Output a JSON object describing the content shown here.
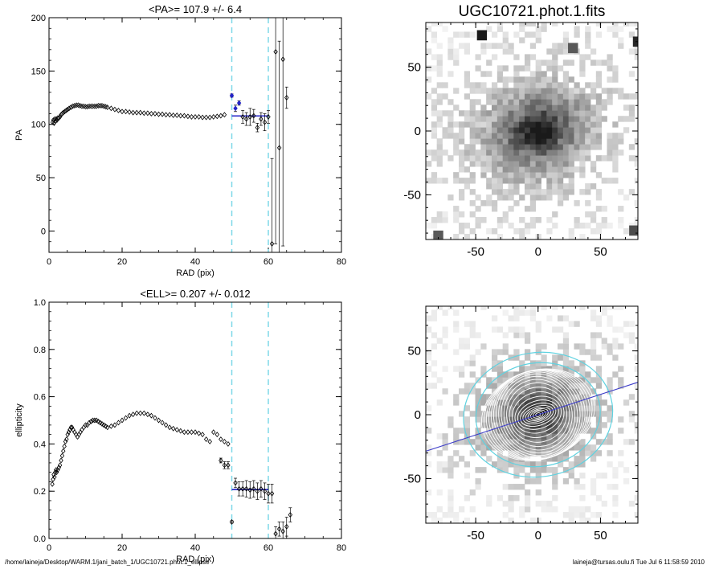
{
  "colors": {
    "axis": "#000000",
    "cyan_marker": "#7fd8e8",
    "mean_line": "#2323c8",
    "cyan_ellipse": "#5fd2e0",
    "pa_axis_line": "#3c3cc8"
  },
  "chart_data": [
    {
      "type": "scatter",
      "title": "<PA>= 107.9 +/-   6.4",
      "xlabel": "RAD (pix)",
      "ylabel": "PA",
      "xlim": [
        0,
        80
      ],
      "ylim": [
        -20,
        200
      ],
      "xticks": [
        "0",
        "20",
        "40",
        "60",
        "80"
      ],
      "yticks": [
        "0",
        "50",
        "100",
        "150",
        "200"
      ],
      "vlines": [
        50,
        60
      ],
      "mean_value": 107.9,
      "mean_range": [
        50,
        60
      ],
      "series": [
        {
          "x": [
            1.0,
            1.2,
            1.4,
            1.6,
            1.8,
            2.0,
            2.2,
            2.4,
            2.7,
            3.0,
            3.3,
            3.6,
            3.9,
            4.3,
            4.7,
            5.1,
            5.5,
            6.0,
            6.5,
            7.0,
            7.5,
            8.0,
            8.5,
            9.0,
            9.5,
            10.0,
            10.5,
            11.0,
            11.5,
            12.0,
            12.5,
            13.0,
            13.5,
            14.0,
            14.5,
            15.0,
            15.5,
            16.0,
            17.0,
            18.0,
            19.0,
            20.0,
            21.0,
            22.0,
            23.0,
            24.0,
            25.0,
            26.0,
            27.0,
            28.0,
            29.0,
            30.0,
            31.0,
            32.0,
            33.0,
            34.0,
            35.0,
            36.0,
            37.0,
            38.0,
            39.0,
            40.0,
            41.0,
            42.0,
            43.0,
            44.0,
            45.0,
            46.0,
            47.0,
            48.0
          ],
          "y": [
            102,
            104,
            101,
            105,
            103,
            105,
            104,
            106,
            106,
            107,
            109,
            110,
            111,
            112,
            113,
            114,
            115,
            116,
            117,
            117.5,
            118,
            118,
            117.5,
            117,
            117,
            116.5,
            116.5,
            117,
            117,
            117,
            117,
            117,
            117.5,
            117.5,
            117.5,
            117,
            116.5,
            116,
            115,
            114,
            113,
            112,
            112,
            111.5,
            111,
            111,
            111,
            110.5,
            110.5,
            110,
            110,
            109.5,
            109.5,
            109,
            109,
            108.5,
            108.5,
            108,
            108,
            107.5,
            107,
            107,
            107,
            106.5,
            106.5,
            106.5,
            107,
            107.5,
            108,
            109
          ]
        },
        {
          "color": "blue",
          "x": [
            50,
            51,
            52
          ],
          "y": [
            127,
            115,
            120
          ],
          "err": [
            1.5,
            3,
            2
          ]
        },
        {
          "x": [
            53,
            54,
            55,
            56,
            57,
            58,
            59,
            60,
            61,
            62,
            63,
            64,
            65
          ],
          "y": [
            107,
            105,
            107,
            108,
            97,
            105,
            102,
            107,
            -12,
            168,
            78,
            161,
            125
          ],
          "err": [
            6,
            6,
            8,
            6,
            4,
            6,
            8,
            6,
            80,
            180,
            100,
            175,
            10
          ]
        }
      ]
    },
    {
      "type": "scatter",
      "title": "<ELL>= 0.207 +/-  0.012",
      "xlabel": "RAD (pix)",
      "ylabel": "ellipticity",
      "xlim": [
        0,
        80
      ],
      "ylim": [
        0,
        1
      ],
      "xticks": [
        "0",
        "20",
        "40",
        "60",
        "80"
      ],
      "yticks": [
        "0.0",
        "0.2",
        "0.4",
        "0.6",
        "0.8",
        "1.0"
      ],
      "vlines": [
        50,
        60
      ],
      "mean_value": 0.207,
      "mean_range": [
        50,
        60
      ],
      "series": [
        {
          "x": [
            0.9,
            1.1,
            1.3,
            1.5,
            1.7,
            1.9,
            2.1,
            2.4,
            2.7,
            3.0,
            3.3,
            3.6,
            3.9,
            4.2,
            4.5,
            4.8,
            5.1,
            5.4,
            5.7,
            6.0,
            6.3,
            6.6,
            7.0,
            7.4,
            7.8,
            8.2,
            8.6,
            9.0,
            9.5,
            10.0,
            10.5,
            11.0,
            11.5,
            12.0,
            12.5,
            13.0,
            13.5,
            14.0,
            14.5,
            15.0,
            15.5,
            16.0,
            17.0,
            18.0,
            19.0,
            20.0,
            21.0,
            22.0,
            23.0,
            24.0,
            25.0,
            26.0,
            27.0,
            28.0,
            29.0,
            30.0,
            31.0,
            32.0,
            33.0,
            34.0,
            35.0,
            36.0,
            37.0,
            38.0,
            39.0,
            40.0,
            41.0,
            42.0,
            43.0,
            44.0,
            45.0,
            46.0,
            47.0,
            48.0,
            49.0
          ],
          "y": [
            0.23,
            0.25,
            0.27,
            0.26,
            0.28,
            0.29,
            0.28,
            0.29,
            0.3,
            0.31,
            0.33,
            0.35,
            0.37,
            0.39,
            0.41,
            0.42,
            0.44,
            0.45,
            0.46,
            0.47,
            0.47,
            0.46,
            0.45,
            0.44,
            0.43,
            0.44,
            0.45,
            0.46,
            0.47,
            0.48,
            0.48,
            0.49,
            0.495,
            0.5,
            0.5,
            0.5,
            0.495,
            0.49,
            0.485,
            0.48,
            0.475,
            0.47,
            0.475,
            0.48,
            0.49,
            0.5,
            0.51,
            0.52,
            0.525,
            0.53,
            0.53,
            0.53,
            0.525,
            0.52,
            0.51,
            0.5,
            0.49,
            0.48,
            0.47,
            0.465,
            0.46,
            0.455,
            0.45,
            0.45,
            0.45,
            0.45,
            0.445,
            0.44,
            0.42,
            0.41,
            0.45,
            0.44,
            0.42,
            0.41,
            0.4
          ]
        },
        {
          "x": [
            47,
            48,
            49,
            50,
            51
          ],
          "y": [
            0.33,
            0.31,
            0.31,
            0.07,
            0.235
          ],
          "err": [
            0.01,
            0.015,
            0.015,
            0.005,
            0.02
          ]
        },
        {
          "x": [
            52,
            53,
            54,
            55,
            56,
            57,
            58,
            59,
            60,
            61,
            62,
            63,
            64,
            65,
            66
          ],
          "y": [
            0.21,
            0.21,
            0.21,
            0.205,
            0.21,
            0.2,
            0.21,
            0.2,
            0.19,
            0.19,
            0.02,
            0.04,
            0.03,
            0.05,
            0.1
          ],
          "err": [
            0.03,
            0.03,
            0.035,
            0.035,
            0.035,
            0.035,
            0.035,
            0.035,
            0.04,
            0.04,
            0.03,
            0.03,
            0.04,
            0.04,
            0.03
          ]
        }
      ]
    },
    {
      "type": "heatmap",
      "title": "UGC10721.phot.1.fits",
      "xlim": [
        -90,
        80
      ],
      "ylim": [
        -85,
        85
      ],
      "xticks": [
        "-50",
        "0",
        "50"
      ],
      "yticks": [
        "-50",
        "0",
        "50"
      ],
      "galaxy": {
        "center": [
          0,
          0
        ],
        "pa_deg": 108,
        "ellipticity": 0.21,
        "scale_pix": 32
      }
    },
    {
      "type": "heatmap",
      "xlim": [
        -90,
        80
      ],
      "ylim": [
        -85,
        85
      ],
      "xticks": [
        "-50",
        "0",
        "50"
      ],
      "yticks": [
        "-50",
        "0",
        "50"
      ],
      "isophote_ellipses": 22,
      "outer_ellipses_radius": [
        50,
        60
      ],
      "pa_line_deg": 108
    }
  ],
  "footer": {
    "left": "/home/laineja/Desktop/WARM.1/jani_batch_1/UGC10721.phot.1_ellipse",
    "right": "laineja@tursas.oulu.fi  Tue Jul  6 11:58:59 2010"
  }
}
